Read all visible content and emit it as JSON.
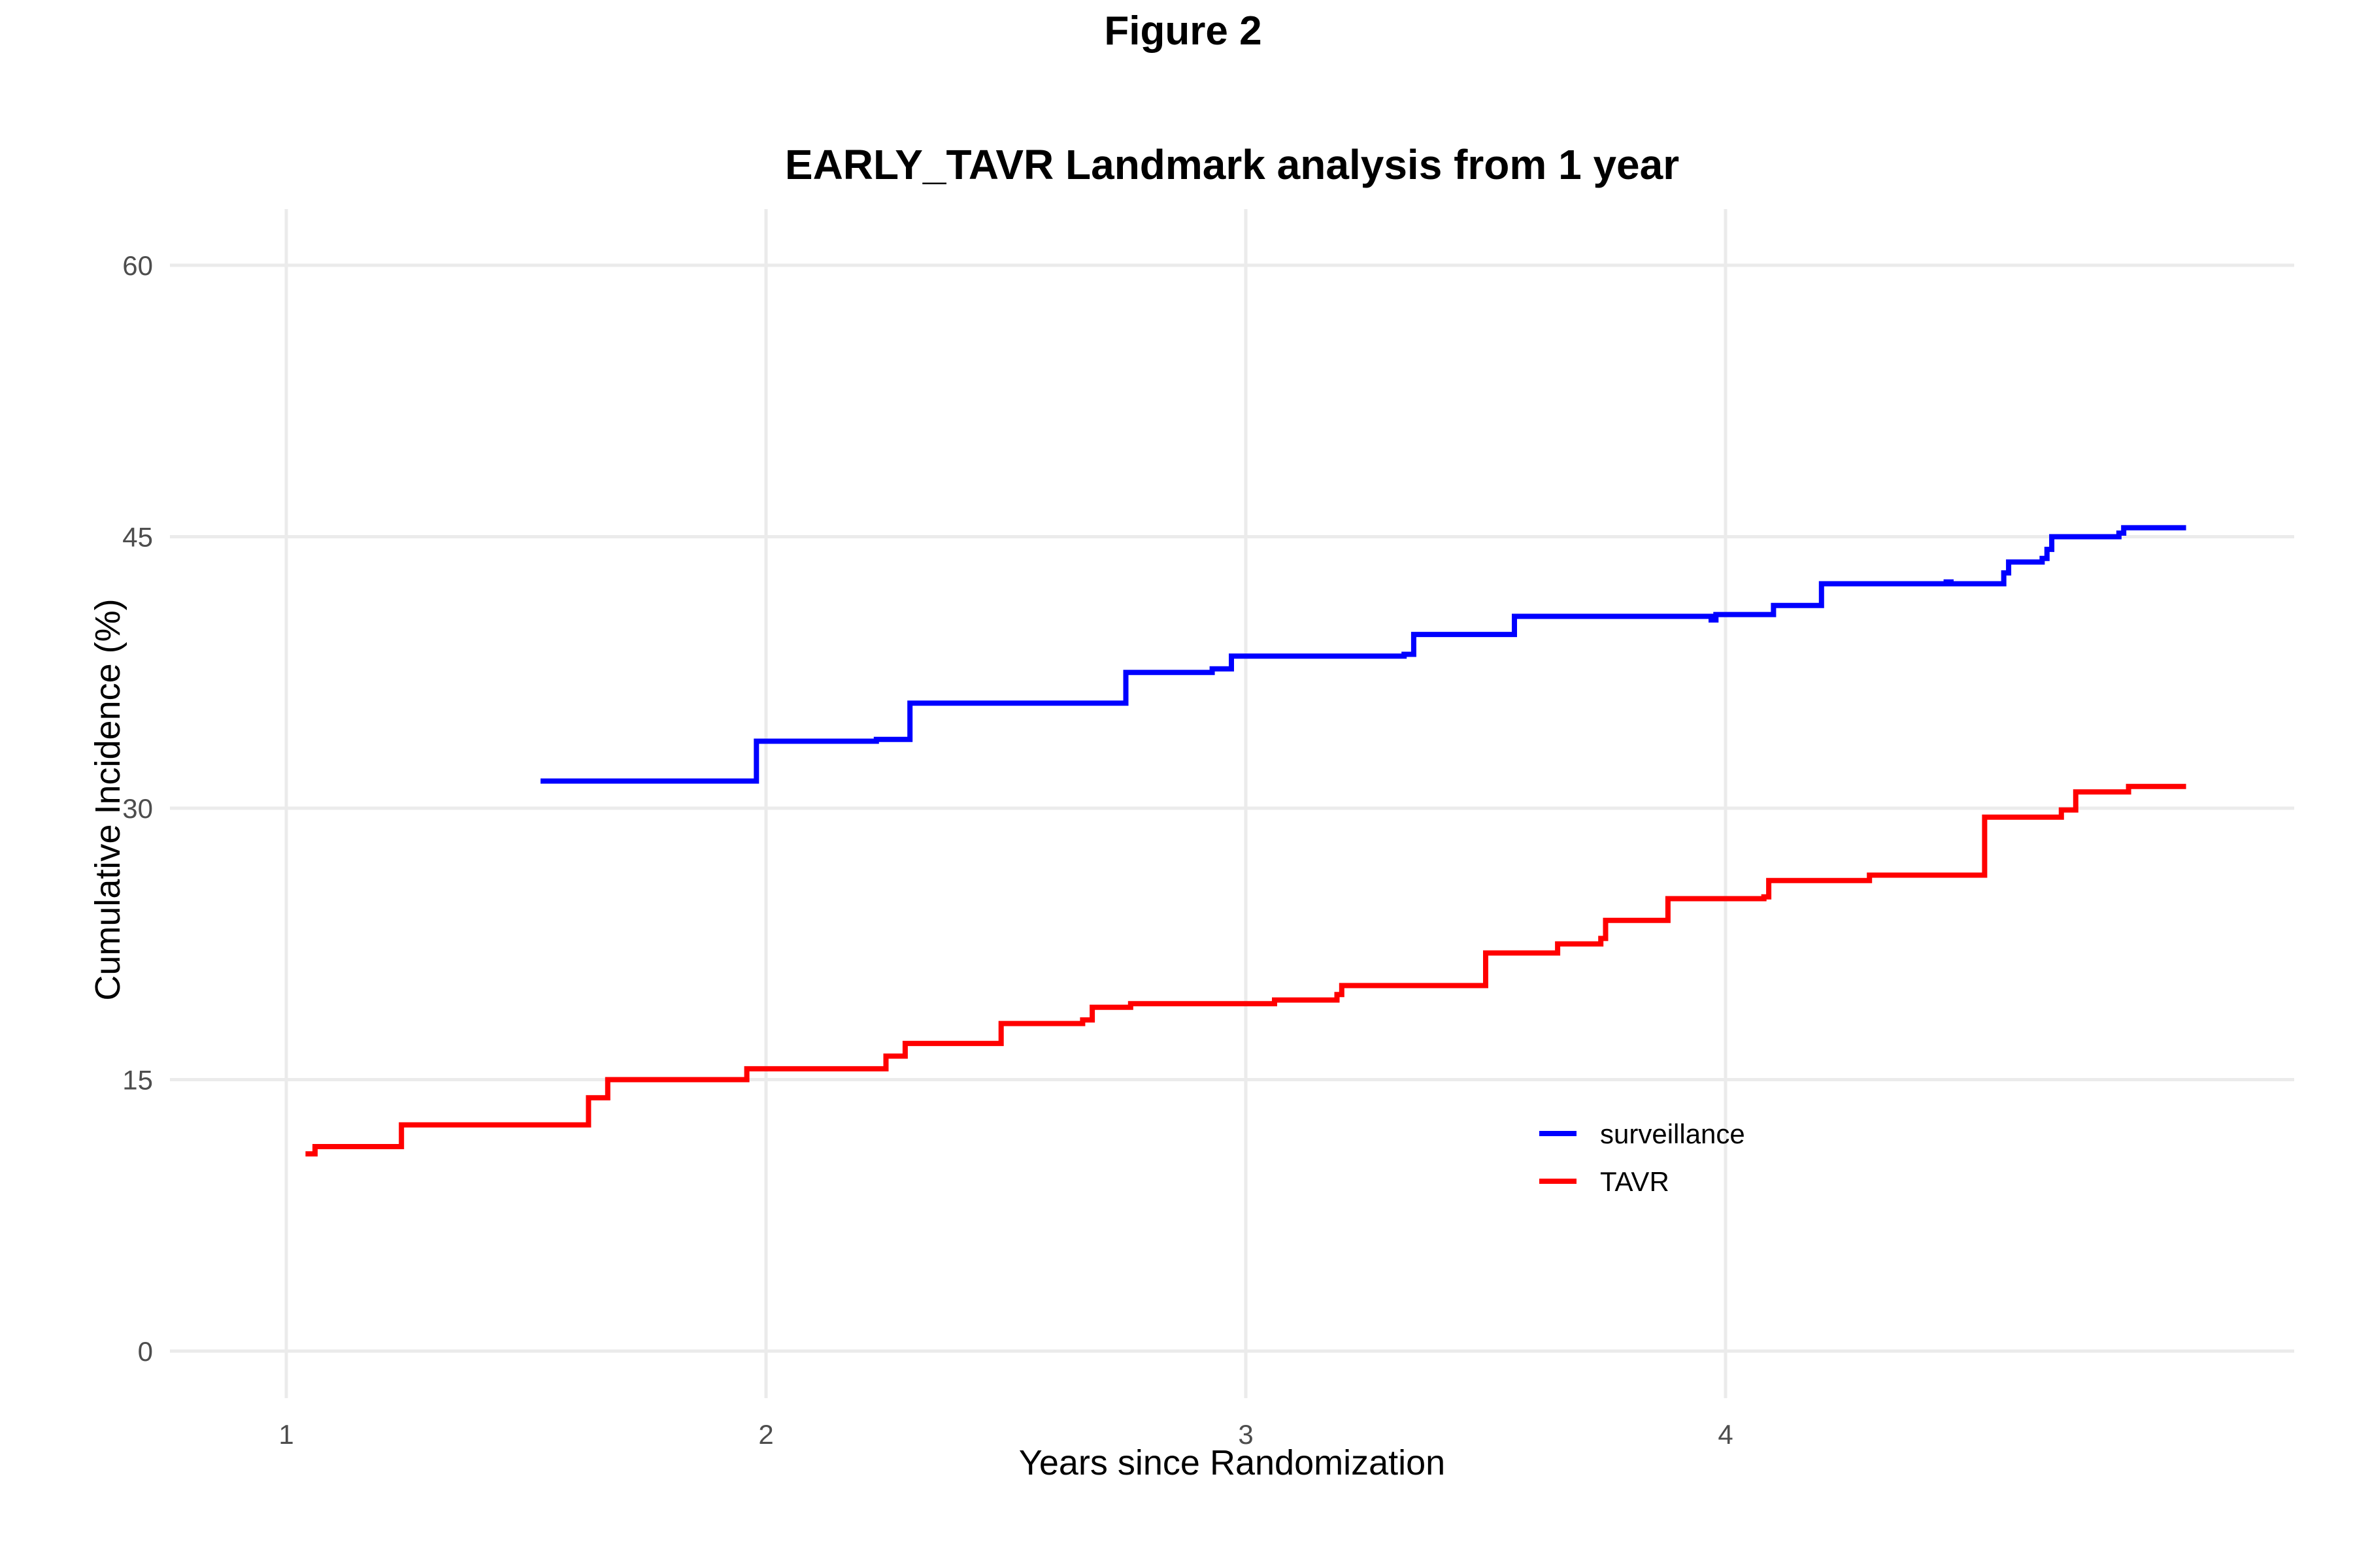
{
  "figure_title": "Figure 2",
  "chart_data": {
    "type": "line",
    "title": "EARLY_TAVR  Landmark analysis from 1 year",
    "xlabel": "Years since Randomization",
    "ylabel": "Cumulative Incidence (%)",
    "xlim": [
      0.83,
      5.2
    ],
    "ylim": [
      -3,
      63
    ],
    "x_ticks": [
      1,
      2,
      3,
      4
    ],
    "y_ticks": [
      0,
      15,
      30,
      45,
      60
    ],
    "grid": true,
    "legend_position": "inside-right",
    "series": [
      {
        "name": "surveillance",
        "color": "#0000ff",
        "step": true,
        "points": [
          [
            1.53,
            31.5
          ],
          [
            1.98,
            33.7
          ],
          [
            2.23,
            33.8
          ],
          [
            2.3,
            35.8
          ],
          [
            2.75,
            37.5
          ],
          [
            2.93,
            37.7
          ],
          [
            2.97,
            38.4
          ],
          [
            3.33,
            38.5
          ],
          [
            3.35,
            39.6
          ],
          [
            3.56,
            40.6
          ],
          [
            3.97,
            40.4
          ],
          [
            3.98,
            40.7
          ],
          [
            4.1,
            41.2
          ],
          [
            4.2,
            42.4
          ],
          [
            4.46,
            42.5
          ],
          [
            4.47,
            42.4
          ],
          [
            4.58,
            43.0
          ],
          [
            4.59,
            43.6
          ],
          [
            4.66,
            43.8
          ],
          [
            4.67,
            44.3
          ],
          [
            4.68,
            45.0
          ],
          [
            4.82,
            45.2
          ],
          [
            4.83,
            45.5
          ],
          [
            4.96,
            45.5
          ]
        ]
      },
      {
        "name": "TAVR",
        "color": "#ff0000",
        "step": true,
        "points": [
          [
            1.04,
            10.9
          ],
          [
            1.06,
            11.3
          ],
          [
            1.24,
            12.5
          ],
          [
            1.63,
            14.0
          ],
          [
            1.67,
            15.0
          ],
          [
            1.96,
            15.6
          ],
          [
            2.25,
            16.3
          ],
          [
            2.29,
            17.0
          ],
          [
            2.49,
            18.1
          ],
          [
            2.66,
            18.3
          ],
          [
            2.68,
            19.0
          ],
          [
            2.76,
            19.2
          ],
          [
            3.06,
            19.4
          ],
          [
            3.19,
            19.7
          ],
          [
            3.2,
            20.2
          ],
          [
            3.5,
            22.0
          ],
          [
            3.65,
            22.5
          ],
          [
            3.74,
            22.8
          ],
          [
            3.75,
            23.8
          ],
          [
            3.88,
            25.0
          ],
          [
            4.08,
            25.1
          ],
          [
            4.09,
            26.0
          ],
          [
            4.3,
            26.3
          ],
          [
            4.54,
            29.5
          ],
          [
            4.7,
            29.9
          ],
          [
            4.73,
            30.9
          ],
          [
            4.84,
            31.2
          ],
          [
            4.96,
            31.2
          ]
        ]
      }
    ]
  }
}
